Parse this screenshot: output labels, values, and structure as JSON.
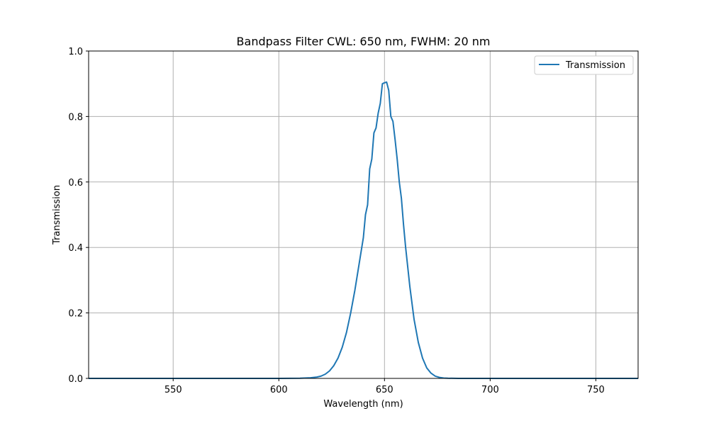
{
  "chart_data": {
    "type": "line",
    "title": "Bandpass Filter CWL: 650 nm, FWHM: 20 nm",
    "xlabel": "Wavelength (nm)",
    "ylabel": "Transmission",
    "xlim": [
      510,
      770
    ],
    "ylim": [
      0.0,
      1.0
    ],
    "x_ticks": [
      550,
      600,
      650,
      700,
      750
    ],
    "y_ticks": [
      0.0,
      0.2,
      0.4,
      0.6,
      0.8,
      1.0
    ],
    "x_tick_labels": [
      "550",
      "600",
      "650",
      "700",
      "750"
    ],
    "y_tick_labels": [
      "0.0",
      "0.2",
      "0.4",
      "0.6",
      "0.8",
      "1.0"
    ],
    "grid": true,
    "legend_position": "top-right",
    "series": [
      {
        "name": "Transmission",
        "color": "#1f77b4",
        "x": [
          510,
          600,
          610,
          615,
          618,
          620,
          622,
          624,
          626,
          628,
          630,
          632,
          634,
          636,
          638,
          640,
          641,
          642,
          643,
          644,
          645,
          646,
          647,
          648,
          649,
          650,
          651,
          652,
          653,
          654,
          655,
          656,
          657,
          658,
          659,
          660,
          662,
          664,
          666,
          668,
          670,
          672,
          674,
          676,
          678,
          680,
          685,
          690,
          700,
          770
        ],
        "y": [
          0.0,
          0.0,
          0.0005,
          0.002,
          0.004,
          0.007,
          0.013,
          0.023,
          0.039,
          0.062,
          0.095,
          0.14,
          0.2,
          0.27,
          0.35,
          0.43,
          0.5,
          0.53,
          0.64,
          0.67,
          0.75,
          0.765,
          0.81,
          0.84,
          0.9,
          0.903,
          0.905,
          0.88,
          0.8,
          0.785,
          0.73,
          0.67,
          0.6,
          0.55,
          0.47,
          0.4,
          0.28,
          0.18,
          0.11,
          0.062,
          0.032,
          0.016,
          0.007,
          0.003,
          0.0012,
          0.0005,
          0.0001,
          0.0,
          0.0,
          0.0
        ]
      }
    ]
  }
}
